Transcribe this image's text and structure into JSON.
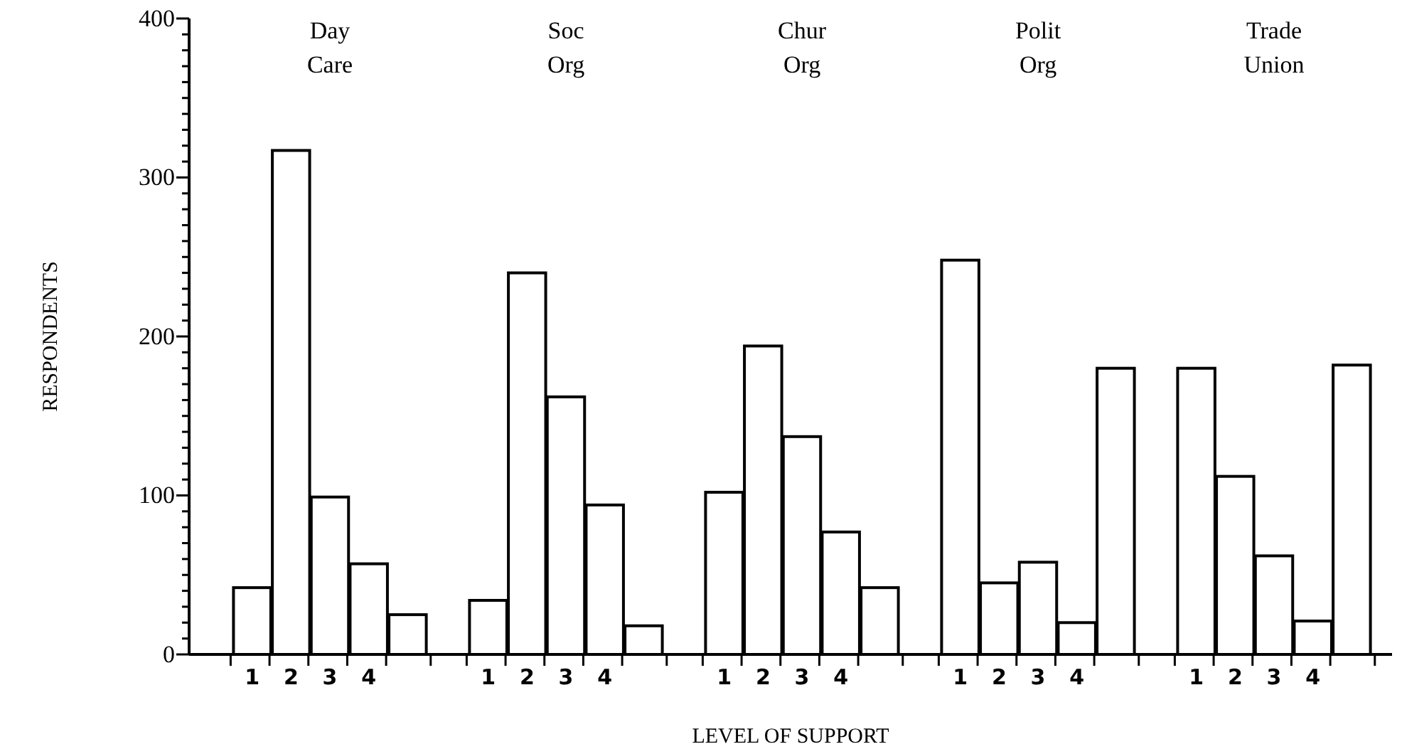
{
  "chart_data": {
    "type": "bar",
    "xlabel": "LEVEL OF SUPPORT",
    "ylabel": "RESPONDENTS",
    "categories": [
      "Day Care",
      "Soc Org",
      "Chur Org",
      "Polit Org",
      "Trade Union"
    ],
    "series": [
      {
        "name": "1",
        "color": "#ffffff",
        "values": [
          42,
          34,
          102,
          248,
          180
        ]
      },
      {
        "name": "2",
        "color": "#ffffff",
        "values": [
          317,
          240,
          194,
          45,
          112
        ]
      },
      {
        "name": "3",
        "color": "#ffffff",
        "values": [
          99,
          162,
          137,
          58,
          62
        ]
      },
      {
        "name": "4",
        "color": "#ffffff",
        "values": [
          57,
          94,
          77,
          20,
          21
        ]
      },
      {
        "color": "#ffffff",
        "values": [
          25,
          18,
          42,
          180,
          182
        ]
      }
    ],
    "ylim": [
      0,
      400
    ],
    "yticks": [
      0,
      {
        "value": 10,
        "label": null
      },
      {
        "value": 20,
        "label": null
      },
      {
        "value": 30,
        "label": null
      },
      {
        "value": 40,
        "label": null
      },
      {
        "value": 50,
        "label": null
      },
      {
        "value": 60,
        "label": null
      },
      {
        "value": 70,
        "label": null
      },
      {
        "value": 80,
        "label": null
      },
      {
        "value": 90,
        "label": null
      },
      100,
      {
        "value": 110,
        "label": null
      },
      {
        "value": 120,
        "label": null
      },
      {
        "value": 130,
        "label": null
      },
      {
        "value": 140,
        "label": null
      },
      {
        "value": 150,
        "label": null
      },
      {
        "value": 160,
        "label": null
      },
      {
        "value": 170,
        "label": null
      },
      {
        "value": 180,
        "label": null
      },
      {
        "value": 190,
        "label": null
      },
      200,
      {
        "value": 210,
        "label": null
      },
      {
        "value": 220,
        "label": null
      },
      {
        "value": 230,
        "label": null
      },
      {
        "value": 240,
        "label": null
      },
      {
        "value": 250,
        "label": null
      },
      {
        "value": 260,
        "label": null
      },
      {
        "value": 270,
        "label": null
      },
      {
        "value": 280,
        "label": null
      },
      {
        "value": 290,
        "label": null
      },
      300,
      {
        "value": 310,
        "label": null
      },
      {
        "value": 320,
        "label": null
      },
      {
        "value": 330,
        "label": null
      },
      {
        "value": 340,
        "label": null
      },
      {
        "value": 350,
        "label": null
      },
      {
        "value": 360,
        "label": null
      },
      {
        "value": 370,
        "label": null
      },
      {
        "value": 380,
        "label": null
      },
      {
        "value": 390,
        "label": null
      },
      400
    ],
    "legend": "bottom"
  }
}
